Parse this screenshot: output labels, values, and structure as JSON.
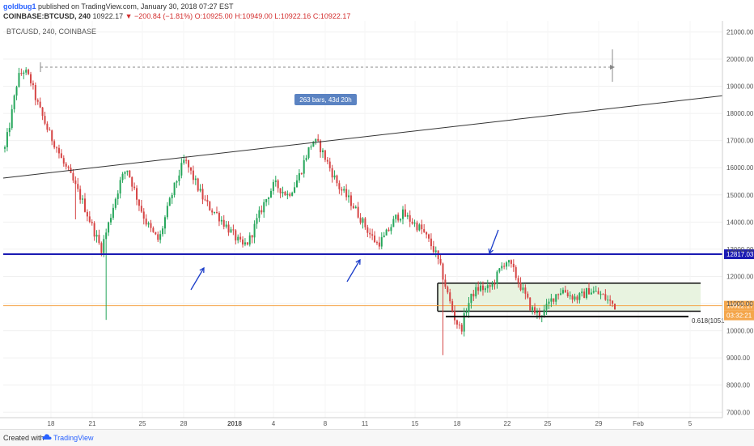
{
  "header": {
    "author": "goldbug1",
    "published": "published on TradingView.com, January 30, 2018 07:27 EST",
    "symbol": "COINBASE:BTCUSD, 240",
    "last": "10922.17",
    "change": "−200.84 (−1.81%)",
    "open": "O:10925.00",
    "high": "H:10949.00",
    "low": "L:10922.16",
    "close": "C:10922.17"
  },
  "footer": {
    "created_with": "Created with",
    "tradingview": "TradingView"
  },
  "chart_data": {
    "type": "candlestick",
    "title": "BTC/USD, 240, COINBASE",
    "x_ticks": [
      "18",
      "21",
      "25",
      "28",
      "2018",
      "4",
      "8",
      "11",
      "15",
      "18",
      "22",
      "25",
      "29",
      "Feb",
      "5"
    ],
    "y_ticks": [
      "7000.00",
      "8000.00",
      "9000.00",
      "10000.00",
      "11000.00",
      "12000.00",
      "13000.00",
      "14000.00",
      "15000.00",
      "16000.00",
      "17000.00",
      "18000.00",
      "19000.00",
      "20000.00",
      "21000.00"
    ],
    "ylim": [
      6800,
      21400
    ],
    "price_path": [
      16700,
      17900,
      19300,
      19600,
      19200,
      18400,
      17800,
      17200,
      16800,
      16200,
      15800,
      15300,
      14800,
      14200,
      13600,
      13000,
      13800,
      14700,
      15500,
      16000,
      15300,
      14600,
      14000,
      13600,
      13300,
      14200,
      15000,
      15700,
      16300,
      15800,
      15300,
      14800,
      14500,
      14300,
      14000,
      13700,
      13400,
      13100,
      13300,
      13900,
      14500,
      15000,
      15400,
      15200,
      15000,
      15300,
      15800,
      16500,
      17000,
      16800,
      16300,
      15800,
      15300,
      15000,
      14700,
      14300,
      13900,
      13500,
      13200,
      13400,
      13800,
      14200,
      14300,
      14100,
      13900,
      13700,
      13300,
      12900,
      12200,
      11300,
      10500,
      10000,
      10900,
      11400,
      11600,
      11500,
      11700,
      12200,
      12600,
      12300,
      11800,
      11300,
      10800,
      10600,
      10700,
      11100,
      11400,
      11500,
      11300,
      11200,
      11300,
      11500,
      11400,
      11300,
      11100,
      10922
    ],
    "annotations": {
      "trendline": {
        "from": [
          "mid Dec",
          15620
        ],
        "to": [
          "Feb 6",
          18650
        ]
      },
      "measure_dashed_level": 19700,
      "measure_label": "263 bars, 43d 20h",
      "horizontal_line": {
        "value": 12817.03,
        "label": "12817.03",
        "color": "#1a1ab3"
      },
      "last_price": {
        "value": 10922.17,
        "label": "10922.17",
        "color": "#f4a64b"
      },
      "countdown": "03:32:21",
      "range_box": {
        "top": 11750,
        "bottom": 10720
      },
      "fib_line": {
        "value": 10520,
        "label": "0.618(1051"
      }
    }
  }
}
